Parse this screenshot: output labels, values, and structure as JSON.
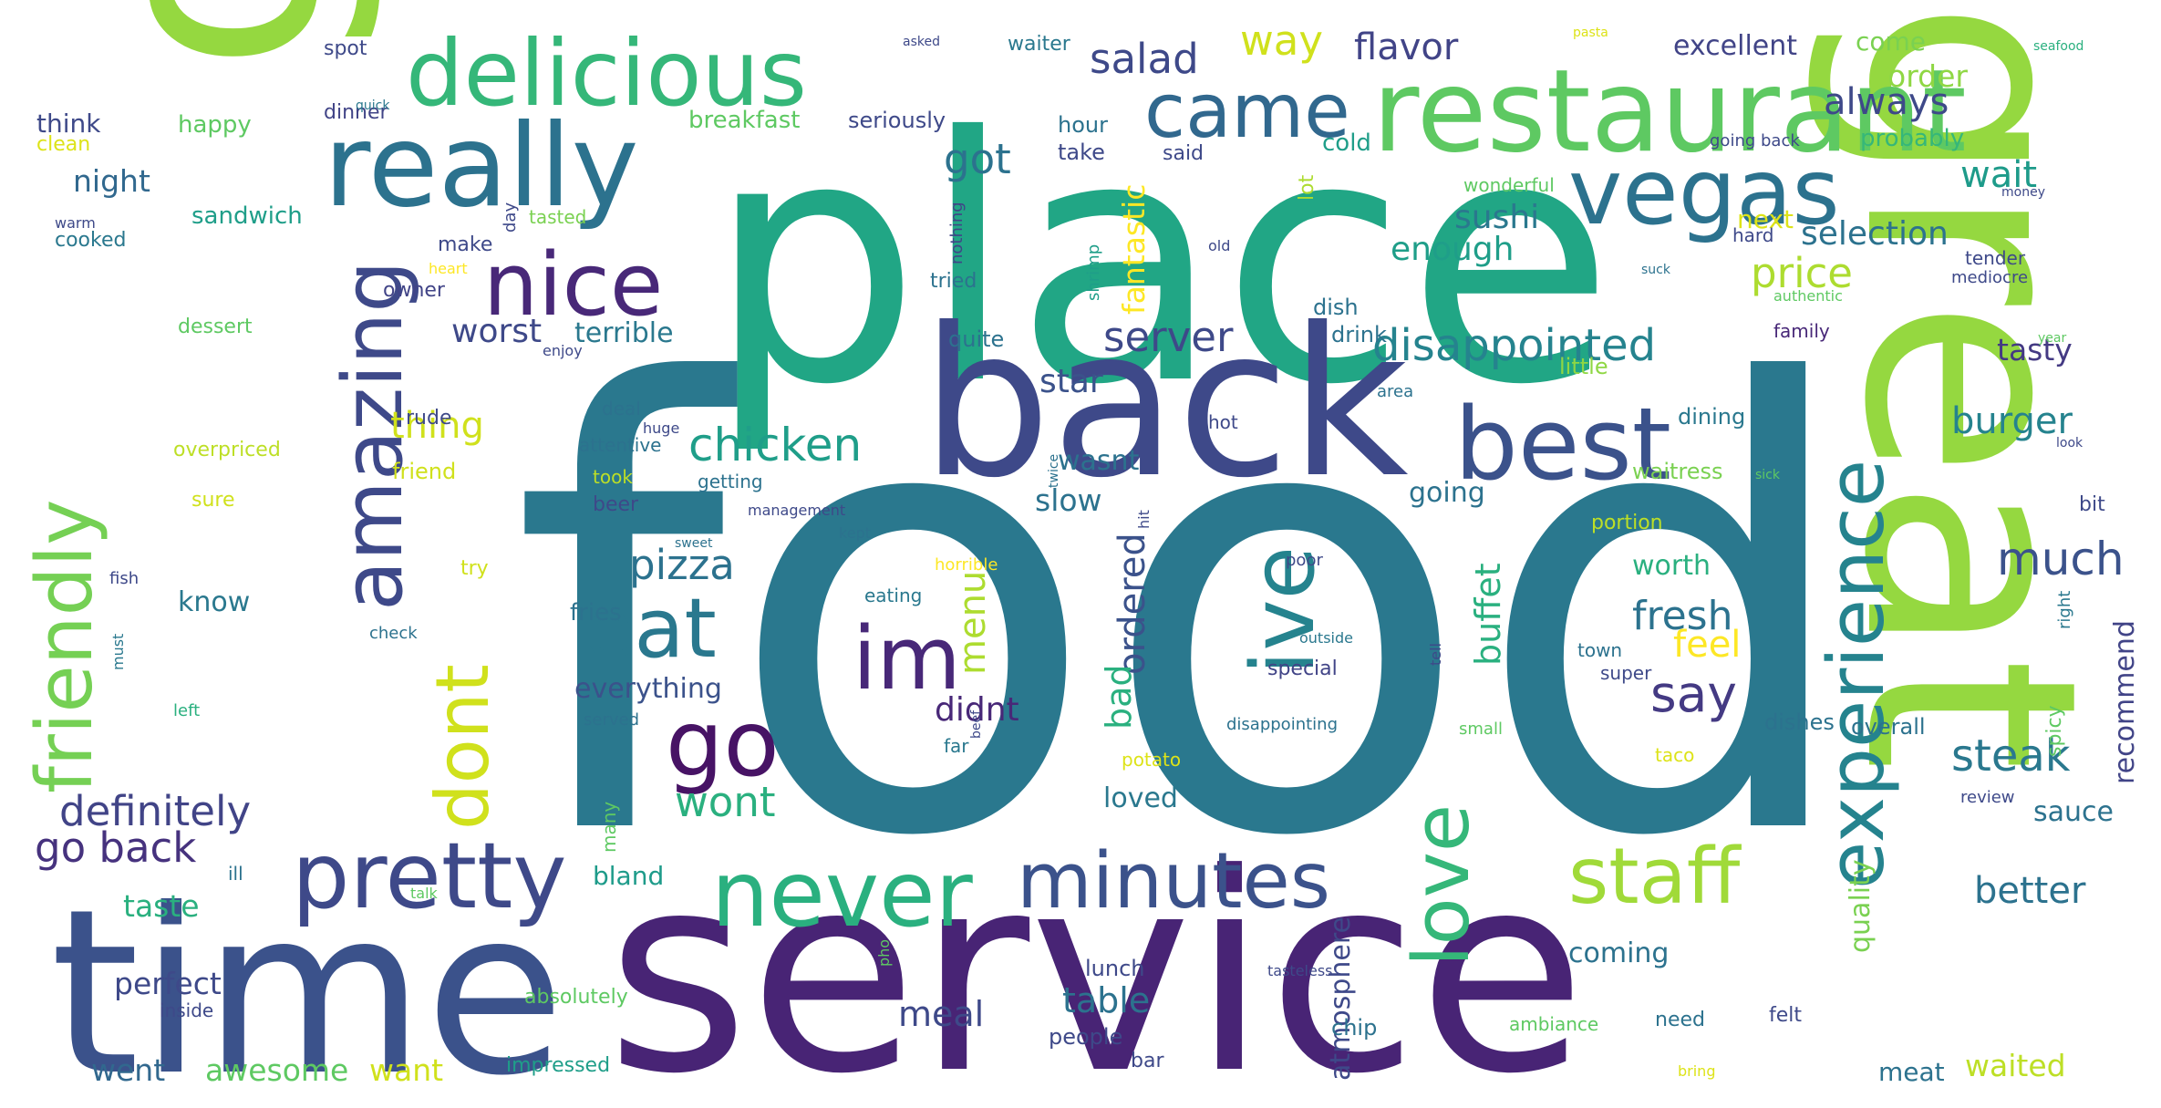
{
  "wordcloud": {
    "words": [
      {
        "text": "food",
        "color": "#2a788e"
      },
      {
        "text": "place",
        "color": "#21a685"
      },
      {
        "text": "service",
        "color": "#482475"
      },
      {
        "text": "good",
        "color": "#95d840"
      },
      {
        "text": "great",
        "color": "#95d840"
      },
      {
        "text": "time",
        "color": "#3b528b"
      },
      {
        "text": "back",
        "color": "#3e4989"
      },
      {
        "text": "restaurant",
        "color": "#5ec962"
      },
      {
        "text": "delicious",
        "color": "#35b779"
      },
      {
        "text": "really",
        "color": "#2c728e"
      },
      {
        "text": "came",
        "color": "#31688e"
      },
      {
        "text": "vegas",
        "color": "#2c728e"
      },
      {
        "text": "best",
        "color": "#3b528b"
      },
      {
        "text": "nice",
        "color": "#482878"
      },
      {
        "text": "amazing",
        "color": "#3e4989"
      },
      {
        "text": "friendly",
        "color": "#75d054"
      },
      {
        "text": "eat",
        "color": "#2a788e"
      },
      {
        "text": "im",
        "color": "#482878"
      },
      {
        "text": "ive",
        "color": "#25838e"
      },
      {
        "text": "go",
        "color": "#471365"
      },
      {
        "text": "dont",
        "color": "#d0e11c"
      },
      {
        "text": "pretty",
        "color": "#3e4989"
      },
      {
        "text": "never",
        "color": "#2ab07f"
      },
      {
        "text": "minutes",
        "color": "#3b528b"
      },
      {
        "text": "love",
        "color": "#35b779"
      },
      {
        "text": "staff",
        "color": "#a0da39"
      },
      {
        "text": "experience",
        "color": "#25838e"
      },
      {
        "text": "definitely",
        "color": "#414487"
      },
      {
        "text": "go back",
        "color": "#46327e"
      },
      {
        "text": "salad",
        "color": "#3e4989"
      },
      {
        "text": "way",
        "color": "#d0e11c"
      },
      {
        "text": "flavor",
        "color": "#414487"
      },
      {
        "text": "excellent",
        "color": "#414487"
      },
      {
        "text": "come",
        "color": "#7ad151"
      },
      {
        "text": "order",
        "color": "#8fd744"
      },
      {
        "text": "always",
        "color": "#3e4989"
      },
      {
        "text": "got",
        "color": "#2c728e"
      },
      {
        "text": "wait",
        "color": "#1e9b8a"
      },
      {
        "text": "price",
        "color": "#addc30"
      },
      {
        "text": "selection",
        "color": "#2c728e"
      },
      {
        "text": "server",
        "color": "#3e4989"
      },
      {
        "text": "disappointed",
        "color": "#25838e"
      },
      {
        "text": "chicken",
        "color": "#1f9e89"
      },
      {
        "text": "pizza",
        "color": "#2c728e"
      },
      {
        "text": "sushi",
        "color": "#2a788e"
      },
      {
        "text": "enough",
        "color": "#1f9e89"
      },
      {
        "text": "much",
        "color": "#3b528b"
      },
      {
        "text": "tasty",
        "color": "#443a83"
      },
      {
        "text": "burger",
        "color": "#25838e"
      },
      {
        "text": "steak",
        "color": "#2a788e"
      },
      {
        "text": "fresh",
        "color": "#2c728e"
      },
      {
        "text": "say",
        "color": "#443a83"
      },
      {
        "text": "wont",
        "color": "#2ab07f"
      },
      {
        "text": "menu",
        "color": "#addc30"
      },
      {
        "text": "feel",
        "color": "#fde725"
      },
      {
        "text": "everything",
        "color": "#3b528b"
      },
      {
        "text": "didnt",
        "color": "#482878"
      },
      {
        "text": "ordered",
        "color": "#3b528b"
      },
      {
        "text": "bad",
        "color": "#2ab07f"
      },
      {
        "text": "buffet",
        "color": "#2ab07f"
      },
      {
        "text": "better",
        "color": "#2c728e"
      },
      {
        "text": "worst",
        "color": "#3e4989"
      },
      {
        "text": "terrible",
        "color": "#2a788e"
      },
      {
        "text": "star",
        "color": "#3b528b"
      },
      {
        "text": "wasnt",
        "color": "#2c728e"
      },
      {
        "text": "thing",
        "color": "#d0e11c"
      },
      {
        "text": "fantastic",
        "color": "#fde725"
      },
      {
        "text": "taste",
        "color": "#2ab07f"
      },
      {
        "text": "table",
        "color": "#2c728e"
      },
      {
        "text": "meal",
        "color": "#3e4989"
      },
      {
        "text": "awesome",
        "color": "#5ec962"
      },
      {
        "text": "want",
        "color": "#d0e11c"
      },
      {
        "text": "went",
        "color": "#31688e"
      },
      {
        "text": "perfect",
        "color": "#3e4989"
      },
      {
        "text": "loved",
        "color": "#2a788e"
      },
      {
        "text": "slow",
        "color": "#2c728e"
      },
      {
        "text": "going",
        "color": "#2c728e"
      },
      {
        "text": "worth",
        "color": "#2ab07f"
      },
      {
        "text": "coming",
        "color": "#2c728e"
      },
      {
        "text": "quality",
        "color": "#7ad151"
      },
      {
        "text": "recommend",
        "color": "#414487"
      },
      {
        "text": "sauce",
        "color": "#2c728e"
      },
      {
        "text": "waited",
        "color": "#bddf26"
      },
      {
        "text": "meat",
        "color": "#2c728e"
      },
      {
        "text": "atmosphere",
        "color": "#3e4989"
      },
      {
        "text": "bland",
        "color": "#1e9b8a"
      },
      {
        "text": "night",
        "color": "#31688e"
      },
      {
        "text": "think",
        "color": "#3e4989"
      },
      {
        "text": "know",
        "color": "#2a788e"
      },
      {
        "text": "happy",
        "color": "#5ec962"
      },
      {
        "text": "dinner",
        "color": "#414487"
      },
      {
        "text": "breakfast",
        "color": "#5ec962"
      },
      {
        "text": "seriously",
        "color": "#3e4989"
      },
      {
        "text": "hour",
        "color": "#2c728e"
      },
      {
        "text": "take",
        "color": "#3e4989"
      },
      {
        "text": "cold",
        "color": "#1f9e89"
      },
      {
        "text": "said",
        "color": "#3e4989"
      },
      {
        "text": "lot",
        "color": "#addc30"
      },
      {
        "text": "wonderful",
        "color": "#5ec962"
      },
      {
        "text": "probably",
        "color": "#35b779"
      },
      {
        "text": "next",
        "color": "#dde318"
      },
      {
        "text": "sandwich",
        "color": "#1f9e89"
      },
      {
        "text": "cooked",
        "color": "#2a788e"
      },
      {
        "text": "make",
        "color": "#3e4989"
      },
      {
        "text": "tasted",
        "color": "#7ad151"
      },
      {
        "text": "day",
        "color": "#3e4989"
      },
      {
        "text": "owner",
        "color": "#414487"
      },
      {
        "text": "tried",
        "color": "#2c728e"
      },
      {
        "text": "nothing",
        "color": "#414487"
      },
      {
        "text": "shrimp",
        "color": "#1f9e89"
      },
      {
        "text": "dessert",
        "color": "#5ec962"
      },
      {
        "text": "quite",
        "color": "#2c728e"
      },
      {
        "text": "dish",
        "color": "#2c728e"
      },
      {
        "text": "drink",
        "color": "#2c728e"
      },
      {
        "text": "little",
        "color": "#8fd744"
      },
      {
        "text": "dining",
        "color": "#2a788e"
      },
      {
        "text": "family",
        "color": "#482878"
      },
      {
        "text": "rude",
        "color": "#3e4989"
      },
      {
        "text": "overpriced",
        "color": "#bddf26"
      },
      {
        "text": "deal",
        "color": "#2c728e"
      },
      {
        "text": "attentive",
        "color": "#2c728e"
      },
      {
        "text": "beer",
        "color": "#3e4989"
      },
      {
        "text": "friend",
        "color": "#d0e11c"
      },
      {
        "text": "took",
        "color": "#bddf26"
      },
      {
        "text": "getting",
        "color": "#2c728e"
      },
      {
        "text": "sure",
        "color": "#d0e11c"
      },
      {
        "text": "management",
        "color": "#3e4989"
      },
      {
        "text": "kept",
        "color": "#2c728e"
      },
      {
        "text": "waitress",
        "color": "#7ad151"
      },
      {
        "text": "portion",
        "color": "#bddf26"
      },
      {
        "text": "try",
        "color": "#d0e11c"
      },
      {
        "text": "fries",
        "color": "#2c728e"
      },
      {
        "text": "eating",
        "color": "#2a788e"
      },
      {
        "text": "horrible",
        "color": "#fde725"
      },
      {
        "text": "poor",
        "color": "#3e4989"
      },
      {
        "text": "special",
        "color": "#414487"
      },
      {
        "text": "far",
        "color": "#2a788e"
      },
      {
        "text": "served",
        "color": "#2c728e"
      },
      {
        "text": "absolutely",
        "color": "#5ec962"
      },
      {
        "text": "inside",
        "color": "#3e4989"
      },
      {
        "text": "lunch",
        "color": "#3e4989"
      },
      {
        "text": "people",
        "color": "#3e4989"
      },
      {
        "text": "chip",
        "color": "#2c728e"
      },
      {
        "text": "bar",
        "color": "#3e4989"
      },
      {
        "text": "impressed",
        "color": "#1f9e89"
      },
      {
        "text": "ambiance",
        "color": "#5ec962"
      },
      {
        "text": "need",
        "color": "#2c728e"
      },
      {
        "text": "felt",
        "color": "#3e4989"
      },
      {
        "text": "dishes",
        "color": "#2c728e"
      },
      {
        "text": "overall",
        "color": "#2c728e"
      },
      {
        "text": "spicy",
        "color": "#5ec962"
      },
      {
        "text": "bit",
        "color": "#3e4989"
      },
      {
        "text": "right",
        "color": "#2a788e"
      },
      {
        "text": "spot",
        "color": "#3e4989"
      },
      {
        "text": "asked",
        "color": "#3e4989"
      },
      {
        "text": "waiter",
        "color": "#2a788e"
      },
      {
        "text": "pasta",
        "color": "#dde318"
      },
      {
        "text": "seafood",
        "color": "#2ab07f"
      },
      {
        "text": "quick",
        "color": "#2a788e"
      },
      {
        "text": "clean",
        "color": "#dde318"
      },
      {
        "text": "warm",
        "color": "#3e4989"
      },
      {
        "text": "heart",
        "color": "#fde725"
      },
      {
        "text": "enjoy",
        "color": "#3e4989"
      },
      {
        "text": "going back",
        "color": "#3e4989"
      },
      {
        "text": "hard",
        "color": "#3e4989"
      },
      {
        "text": "old",
        "color": "#3e4989"
      },
      {
        "text": "suck",
        "color": "#2c728e"
      },
      {
        "text": "money",
        "color": "#3e4989"
      },
      {
        "text": "tender",
        "color": "#3e4989"
      },
      {
        "text": "mediocre",
        "color": "#3e4989"
      },
      {
        "text": "authentic",
        "color": "#5ec962"
      },
      {
        "text": "year",
        "color": "#5ec962"
      },
      {
        "text": "area",
        "color": "#2c728e"
      },
      {
        "text": "hot",
        "color": "#3e4989"
      },
      {
        "text": "look",
        "color": "#3e4989"
      },
      {
        "text": "huge",
        "color": "#3e4989"
      },
      {
        "text": "twice",
        "color": "#2c728e"
      },
      {
        "text": "sick",
        "color": "#5ec962"
      },
      {
        "text": "hit",
        "color": "#3e4989"
      },
      {
        "text": "sweet",
        "color": "#2c728e"
      },
      {
        "text": "outside",
        "color": "#2a788e"
      },
      {
        "text": "tell",
        "color": "#3e4989"
      },
      {
        "text": "town",
        "color": "#2c728e"
      },
      {
        "text": "super",
        "color": "#3e4989"
      },
      {
        "text": "check",
        "color": "#2c728e"
      },
      {
        "text": "must",
        "color": "#2a788e"
      },
      {
        "text": "fish",
        "color": "#3e4989"
      },
      {
        "text": "left",
        "color": "#2ab07f"
      },
      {
        "text": "ill",
        "color": "#2c728e"
      },
      {
        "text": "talk",
        "color": "#5ec962"
      },
      {
        "text": "beef",
        "color": "#3e4989"
      },
      {
        "text": "disappointing",
        "color": "#2c728e"
      },
      {
        "text": "small",
        "color": "#5ec962"
      },
      {
        "text": "potato",
        "color": "#dde318"
      },
      {
        "text": "taco",
        "color": "#dde318"
      },
      {
        "text": "pho",
        "color": "#5ec962"
      },
      {
        "text": "tasteless",
        "color": "#3e4989"
      },
      {
        "text": "bring",
        "color": "#dde318"
      },
      {
        "text": "many",
        "color": "#5ec962"
      },
      {
        "text": "review",
        "color": "#3e4989"
      }
    ]
  }
}
